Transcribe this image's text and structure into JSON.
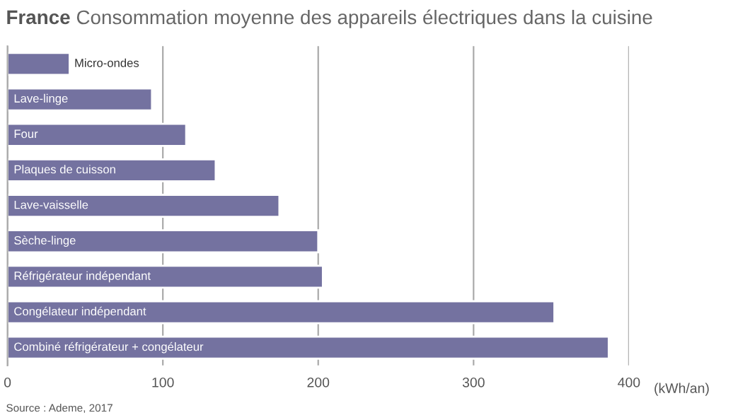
{
  "chart_data": {
    "type": "bar",
    "orientation": "horizontal",
    "title": "France",
    "subtitle": "Consommation moyenne des appareils électriques dans la cuisine",
    "categories": [
      "Micro-ondes",
      "Lave-linge",
      "Four",
      "Plaques de cuisson",
      "Lave-vaisselle",
      "Sèche-linge",
      "Réfrigérateur indépendant",
      "Congélateur indépendant",
      "Combiné réfrigérateur + congélateur"
    ],
    "values": [
      40,
      93,
      115,
      134,
      175,
      200,
      203,
      352,
      387
    ],
    "color": "#7472a0",
    "xlim": [
      0,
      400
    ],
    "xticks": [
      0,
      100,
      200,
      300,
      400
    ],
    "xlabel": "(kWh/an)",
    "grid": "x",
    "annotations": [
      "Source : Ademe, 2017"
    ]
  }
}
